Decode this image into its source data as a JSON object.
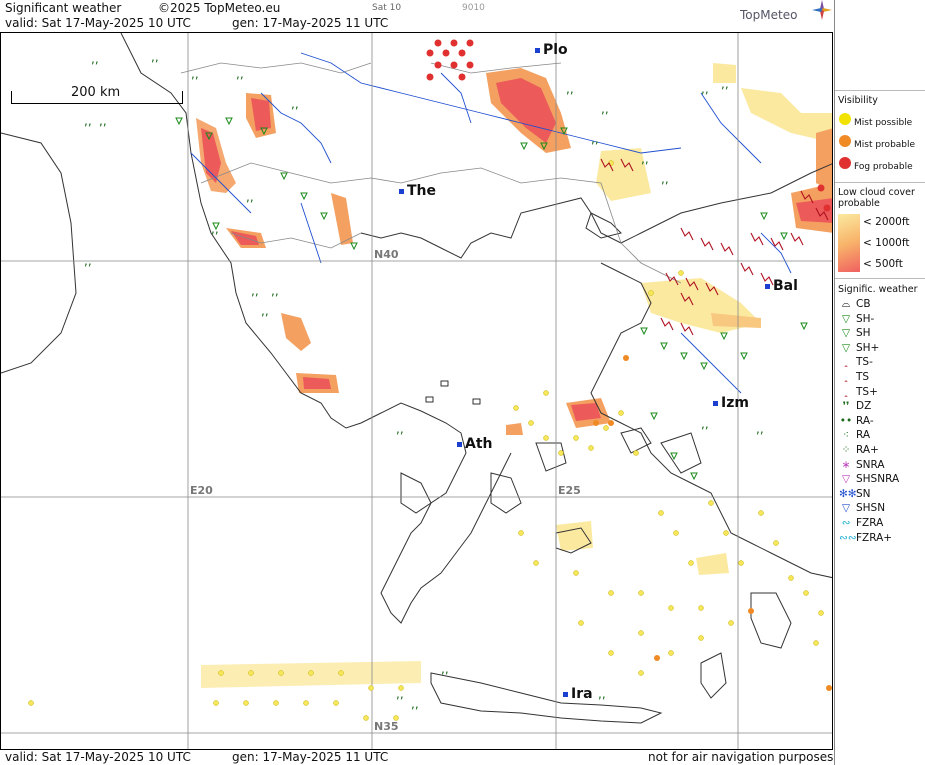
{
  "header": {
    "title": "Significant weather",
    "copyright": "©2025 TopMeteo.eu",
    "valid": "valid:  Sat  17-May-2025  10 UTC",
    "generated": "gen: 17-May-2025 11 UTC",
    "sat_label": "Sat 10",
    "code": "9010",
    "logo": "TopMeteo"
  },
  "map": {
    "scale_label": "200 km",
    "cities": [
      {
        "name": "Plo"
      },
      {
        "name": "The"
      },
      {
        "name": "Bal"
      },
      {
        "name": "Izm"
      },
      {
        "name": "Ath"
      },
      {
        "name": "Ira"
      }
    ],
    "grid_labels": [
      "N40",
      "E20",
      "E25",
      "N35"
    ]
  },
  "footer": {
    "valid": "valid:  Sat  17-May-2025  10 UTC",
    "generated": "gen: 17-May-2025 11 UTC",
    "disclaimer": "not for air navigation purposes"
  },
  "legend": {
    "visibility_title": "Visibility",
    "visibility": [
      {
        "label": "Mist possible",
        "color": "#f2e200"
      },
      {
        "label": "Mist probable",
        "color": "#f08a24"
      },
      {
        "label": "Fog probable",
        "color": "#e03030"
      }
    ],
    "low_cloud_title_1": "Low cloud cover",
    "low_cloud_title_2": "probable",
    "low_cloud": [
      {
        "label": "< 2000ft",
        "color": "#fbe9a0"
      },
      {
        "label": "< 1000ft",
        "color": "#f8b46a"
      },
      {
        "label": "<   500ft",
        "color": "#f06060"
      }
    ],
    "weather_title": "Signific. weather",
    "weather": [
      {
        "label": "CB",
        "icon": "cb-icon",
        "glyph": "⌓",
        "color": "#000000"
      },
      {
        "label": "SH-",
        "icon": "shower-light-icon",
        "glyph": "▽",
        "color": "#1a8a1a"
      },
      {
        "label": "SH",
        "icon": "shower-icon",
        "glyph": "▽",
        "color": "#1a8a1a"
      },
      {
        "label": "SH+",
        "icon": "shower-heavy-icon",
        "glyph": "▽",
        "color": "#1a8a1a"
      },
      {
        "label": "TS-",
        "icon": "thunderstorm-light-icon",
        "glyph": "ꞈ",
        "color": "#b01020"
      },
      {
        "label": "TS",
        "icon": "thunderstorm-icon",
        "glyph": "ꞈ",
        "color": "#b01020"
      },
      {
        "label": "TS+",
        "icon": "thunderstorm-heavy-icon",
        "glyph": "ꞈ",
        "color": "#b01020"
      },
      {
        "label": "DZ",
        "icon": "drizzle-icon",
        "glyph": "❜❜",
        "color": "#1a6a1a"
      },
      {
        "label": "RA-",
        "icon": "rain-light-icon",
        "glyph": "••",
        "color": "#1a6a1a"
      },
      {
        "label": "RA",
        "icon": "rain-icon",
        "glyph": "⁖",
        "color": "#1a6a1a"
      },
      {
        "label": "RA+",
        "icon": "rain-heavy-icon",
        "glyph": "⁘",
        "color": "#1a6a1a"
      },
      {
        "label": "SNRA",
        "icon": "snow-rain-icon",
        "glyph": "∗",
        "color": "#c040c0"
      },
      {
        "label": "SHSNRA",
        "icon": "snow-rain-shower-icon",
        "glyph": "▽",
        "color": "#c040c0"
      },
      {
        "label": "SN",
        "icon": "snow-icon",
        "glyph": "✻✻",
        "color": "#2050d0"
      },
      {
        "label": "SHSN",
        "icon": "snow-shower-icon",
        "glyph": "▽",
        "color": "#2050d0"
      },
      {
        "label": "FZRA",
        "icon": "freezing-rain-icon",
        "glyph": "∾",
        "color": "#20b0d0"
      },
      {
        "label": "FZRA+",
        "icon": "freezing-rain-heavy-icon",
        "glyph": "∾∾",
        "color": "#20b0d0"
      }
    ]
  }
}
